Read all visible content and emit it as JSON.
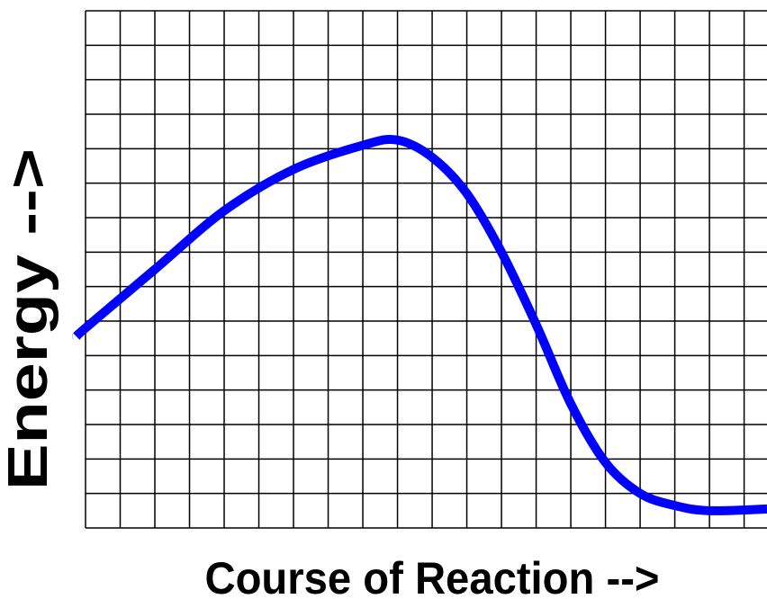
{
  "chart_data": {
    "type": "line",
    "xlabel": "Course of Reaction -->",
    "ylabel": "Energy -->",
    "xlim": [
      -0.26,
      19.66
    ],
    "ylim": [
      0,
      15
    ],
    "xticks": [
      0,
      1,
      2,
      3,
      4,
      5,
      6,
      7,
      8,
      9,
      10,
      11,
      12,
      13,
      14,
      15,
      16,
      17,
      18,
      19
    ],
    "yticks": [
      0,
      1,
      2,
      3,
      4,
      5,
      6,
      7,
      8,
      9,
      10,
      11,
      12,
      13,
      14,
      15
    ],
    "grid": true,
    "x": [
      -0.26,
      0,
      2,
      4,
      6,
      8,
      9,
      10,
      11,
      12,
      13,
      14,
      15,
      16,
      17,
      18,
      19.66
    ],
    "series": [
      {
        "name": null,
        "color": "#0000ff",
        "values": [
          5.55,
          5.8,
          7.5,
          9.2,
          10.4,
          11.1,
          11.25,
          10.75,
          9.7,
          8.0,
          5.9,
          3.6,
          1.9,
          1.0,
          0.65,
          0.5,
          0.55
        ]
      }
    ]
  }
}
